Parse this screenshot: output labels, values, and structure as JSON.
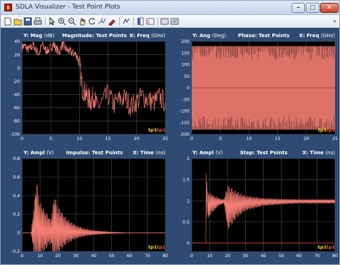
{
  "window": {
    "title": "SDLA Visualizer - Test Point Plots",
    "minimize_glyph": "–",
    "maximize_glyph": "□",
    "close_glyph": "✕"
  },
  "toolbar": {
    "icons": [
      "new-icon",
      "open-icon",
      "save-icon",
      "print-icon",
      "pointer-icon",
      "zoom-in-icon",
      "zoom-out-icon",
      "pan-icon",
      "rotate-icon",
      "data-cursor-icon",
      "brush-icon",
      "link-plot-icon",
      "colorbar-icon",
      "legend-icon",
      "hide-plot-tools-icon",
      "show-plot-tools-icon"
    ],
    "overflow_glyph": "»"
  },
  "colors": {
    "background": "#2f4b73",
    "plot_bg": "#000000",
    "grid": "#4d5055",
    "trace": "#f47d73",
    "tp1_yellow": "#f3e23a",
    "tp1_red": "#f05a4e"
  },
  "panels": [
    {
      "id": "magnitude",
      "ylabel_key": "Y:",
      "ylabel": "Mag",
      "yunit": "(dB)",
      "title": "Magnitude: Test Points",
      "xlabel_key": "X:",
      "xlabel": "Freq",
      "xunit": "(GHz)",
      "legend": [
        "tp1",
        "tp1"
      ]
    },
    {
      "id": "phase",
      "ylabel_key": "Y:",
      "ylabel": "Ang",
      "yunit": "(Deg)",
      "title": "Phase: Test Points",
      "xlabel_key": "X:",
      "xlabel": "Freq",
      "xunit": "(GHz)",
      "legend": [
        "tp1",
        "tp1"
      ]
    },
    {
      "id": "impulse",
      "ylabel_key": "Y:",
      "ylabel": "Ampl",
      "yunit": "(V)",
      "title": "Impulse: Test Points",
      "xlabel_key": "X:",
      "xlabel": "Time",
      "xunit": "(ns)",
      "legend": [
        "tp1",
        "tp1"
      ]
    },
    {
      "id": "step",
      "ylabel_key": "Y:",
      "ylabel": "Ampl",
      "yunit": "(V)",
      "title": "Step: Test Points",
      "xlabel_key": "X:",
      "xlabel": "Time",
      "xunit": "(ns)",
      "legend": [
        "tp1",
        "tp1"
      ]
    }
  ],
  "chart_data": [
    {
      "type": "line",
      "title": "Magnitude: Test Points",
      "xlabel": "Freq (GHz)",
      "ylabel": "Mag (dB)",
      "xlim": [
        0,
        25
      ],
      "ylim": [
        -100,
        40
      ],
      "xticks": [
        0,
        5,
        10,
        15,
        20,
        25
      ],
      "yticks": [
        40,
        20,
        0,
        -20,
        -40,
        -60,
        -80,
        -100
      ],
      "grid": true,
      "legend": [
        "tp1",
        "tp1"
      ],
      "legend_position": "bottom-right",
      "series": [
        {
          "name": "tp1",
          "x": [
            0,
            0.5,
            1,
            1.5,
            2,
            2.5,
            3,
            3.5,
            4,
            4.5,
            5,
            5.5,
            6,
            6.5,
            7,
            7.5,
            8,
            8.5,
            9,
            9.5,
            10,
            10.5,
            11,
            11.5,
            12,
            12.5,
            13,
            14,
            15,
            16,
            17,
            18,
            19,
            20,
            21,
            22,
            23,
            24,
            25
          ],
          "y": [
            32,
            33,
            28,
            30,
            34,
            26,
            22,
            36,
            28,
            26,
            31,
            36,
            28,
            24,
            36,
            30,
            26,
            24,
            22,
            20,
            6,
            -30,
            -38,
            -45,
            -50,
            -42,
            -58,
            -52,
            -40,
            -55,
            -48,
            -45,
            -58,
            -50,
            -42,
            -48,
            -52,
            -44,
            -52
          ]
        }
      ]
    },
    {
      "type": "line",
      "title": "Phase: Test Points",
      "xlabel": "Freq (GHz)",
      "ylabel": "Ang (Deg)",
      "xlim": [
        0,
        25
      ],
      "ylim": [
        -200,
        200
      ],
      "xticks": [
        0,
        5,
        10,
        15,
        20,
        25
      ],
      "yticks": [
        200,
        150,
        100,
        50,
        0,
        -50,
        -100,
        -150,
        -200
      ],
      "grid": true,
      "legend": [
        "tp1",
        "tp1"
      ],
      "legend_position": "bottom-right",
      "series": [
        {
          "name": "tp1",
          "x": [
            0,
            25
          ],
          "y_min": [
            -180,
            -180
          ],
          "y_max": [
            180,
            180
          ]
        }
      ]
    },
    {
      "type": "line",
      "title": "Impulse: Test Points",
      "xlabel": "Time (ns)",
      "ylabel": "Ampl (V)",
      "xlim": [
        0,
        80
      ],
      "ylim": [
        -0.2,
        0.8
      ],
      "xticks": [
        0,
        10,
        20,
        30,
        40,
        50,
        60,
        70,
        80
      ],
      "yticks": [
        0.8,
        0.6,
        0.4,
        0.2,
        0,
        -0.2
      ],
      "grid": true,
      "legend": [
        "tp1",
        "tp1"
      ],
      "legend_position": "bottom-right",
      "series": [
        {
          "name": "tp1",
          "x": [
            0,
            5,
            8,
            10,
            12,
            14,
            16,
            18,
            20,
            25,
            30,
            35,
            40,
            50,
            60,
            70,
            80
          ],
          "y": [
            0,
            0,
            0.62,
            0.35,
            0.28,
            0.22,
            0.15,
            0.45,
            0.3,
            0.16,
            0.09,
            0.05,
            0.03,
            0.01,
            0,
            0,
            0
          ]
        }
      ]
    },
    {
      "type": "line",
      "title": "Step: Test Points",
      "xlabel": "Time (ns)",
      "ylabel": "Ampl (V)",
      "xlim": [
        0,
        80
      ],
      "ylim": [
        -0.2,
        2
      ],
      "xticks": [
        0,
        10,
        20,
        30,
        40,
        50,
        60,
        70,
        80
      ],
      "yticks": [
        2,
        1.5,
        1,
        0.5,
        0
      ],
      "grid": true,
      "legend": [
        "tp1",
        "tp1"
      ],
      "legend_position": "bottom-right",
      "series": [
        {
          "name": "tp1",
          "x": [
            0,
            5,
            8,
            9,
            10,
            15,
            18,
            20,
            25,
            30,
            40,
            50,
            60,
            70,
            80
          ],
          "y": [
            0,
            0,
            0,
            1.4,
            1.25,
            1.05,
            1.0,
            1.55,
            1.3,
            1.15,
            1.05,
            1.02,
            1.0,
            1.0,
            1.0
          ]
        }
      ]
    }
  ]
}
